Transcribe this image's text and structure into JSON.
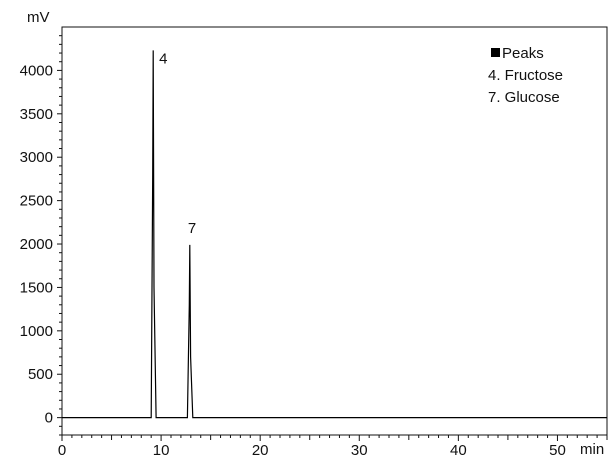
{
  "chart_data": {
    "type": "line",
    "x_unit": "min",
    "y_unit": "mV",
    "xlim": [
      0,
      55
    ],
    "ylim": [
      -200,
      4500
    ],
    "x_ticks": [
      0,
      10,
      20,
      30,
      40,
      50
    ],
    "x_tick_labels": [
      "0",
      "10",
      "20",
      "30",
      "40",
      "50"
    ],
    "y_ticks": [
      0,
      500,
      1000,
      1500,
      2000,
      2500,
      3000,
      3500,
      4000
    ],
    "y_tick_labels": [
      "0",
      "500",
      "1000",
      "1500",
      "2000",
      "2500",
      "3000",
      "3500",
      "4000"
    ],
    "grid": false,
    "legend": {
      "title": "Peaks",
      "entries": [
        "4. Fructose",
        "7. Glucose"
      ],
      "placement": "top-right"
    },
    "peaks": [
      {
        "label": "4",
        "x": 9.2,
        "y": 4230
      },
      {
        "label": "7",
        "x": 12.9,
        "y": 1990
      }
    ],
    "series": [
      {
        "baseline": 0,
        "x": [
          0,
          9.0,
          9.15,
          9.2,
          9.28,
          9.5,
          12.65,
          12.85,
          12.9,
          12.98,
          13.2,
          55
        ],
        "y": [
          0,
          0,
          2800,
          4230,
          1500,
          0,
          0,
          1300,
          1990,
          700,
          0,
          0
        ]
      }
    ]
  }
}
